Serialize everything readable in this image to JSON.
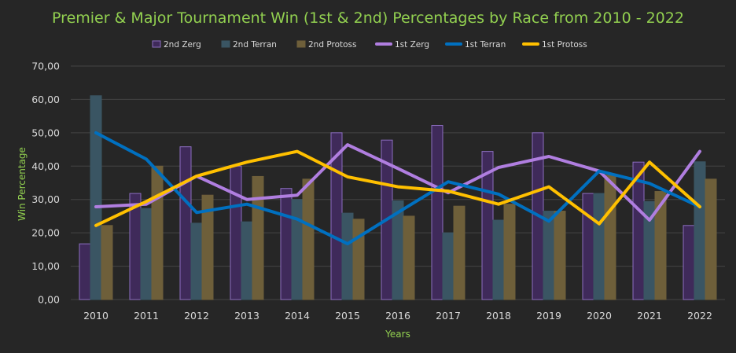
{
  "chart_data": {
    "type": "bar",
    "title": "Premier & Major Tournament  Win (1st & 2nd) Percentages by Race from 2010 - 2022",
    "xlabel": "Years",
    "ylabel": "Win Percentage",
    "ylim": [
      0,
      70
    ],
    "yticks": [
      "0,00",
      "10,00",
      "20,00",
      "30,00",
      "40,00",
      "50,00",
      "60,00",
      "70,00"
    ],
    "categories": [
      "2010",
      "2011",
      "2012",
      "2013",
      "2014",
      "2015",
      "2016",
      "2017",
      "2018",
      "2019",
      "2020",
      "2021",
      "2022"
    ],
    "grid": true,
    "legend_position": "top",
    "bar_series": [
      {
        "name": "2nd Zerg",
        "color": "#3f2a5a",
        "edge": "#8c6ec0",
        "values": [
          16.7,
          31.8,
          45.8,
          40.0,
          33.3,
          50.0,
          47.8,
          52.2,
          44.4,
          50.0,
          31.8,
          41.2,
          22.2
        ]
      },
      {
        "name": "2nd Terran",
        "color": "#3a5563",
        "edge": "#3a5563",
        "values": [
          61.1,
          27.3,
          22.9,
          23.3,
          30.0,
          25.9,
          29.6,
          20.0,
          23.8,
          26.5,
          31.8,
          29.4,
          41.3
        ]
      },
      {
        "name": "2nd Protoss",
        "color": "#6e5f3a",
        "edge": "#6e5f3a",
        "values": [
          22.2,
          40.0,
          31.3,
          36.9,
          36.1,
          24.1,
          25.0,
          28.0,
          28.6,
          26.5,
          37.3,
          32.4,
          36.1
        ]
      }
    ],
    "line_series": [
      {
        "name": "1st Zerg",
        "color": "#b07ee0",
        "values": [
          27.8,
          28.6,
          37.0,
          30.0,
          31.3,
          46.4,
          39.3,
          32.0,
          39.6,
          42.9,
          38.5,
          23.8,
          44.4
        ]
      },
      {
        "name": "1st Terran",
        "color": "#0070c0",
        "values": [
          50.0,
          42.1,
          26.1,
          28.6,
          24.1,
          16.7,
          26.1,
          35.3,
          31.6,
          23.5,
          38.5,
          34.8,
          27.8
        ]
      },
      {
        "name": "1st Protoss",
        "color": "#ffc000",
        "values": [
          22.2,
          29.4,
          37.0,
          41.2,
          44.4,
          36.8,
          33.8,
          32.5,
          28.6,
          33.8,
          22.7,
          41.2,
          27.8
        ]
      }
    ],
    "legend": [
      {
        "name": "2nd Zerg",
        "kind": "bar"
      },
      {
        "name": "2nd Terran",
        "kind": "bar"
      },
      {
        "name": "2nd Protoss",
        "kind": "bar"
      },
      {
        "name": "1st Zerg",
        "kind": "line"
      },
      {
        "name": "1st Terran",
        "kind": "line"
      },
      {
        "name": "1st Protoss",
        "kind": "line"
      }
    ]
  }
}
